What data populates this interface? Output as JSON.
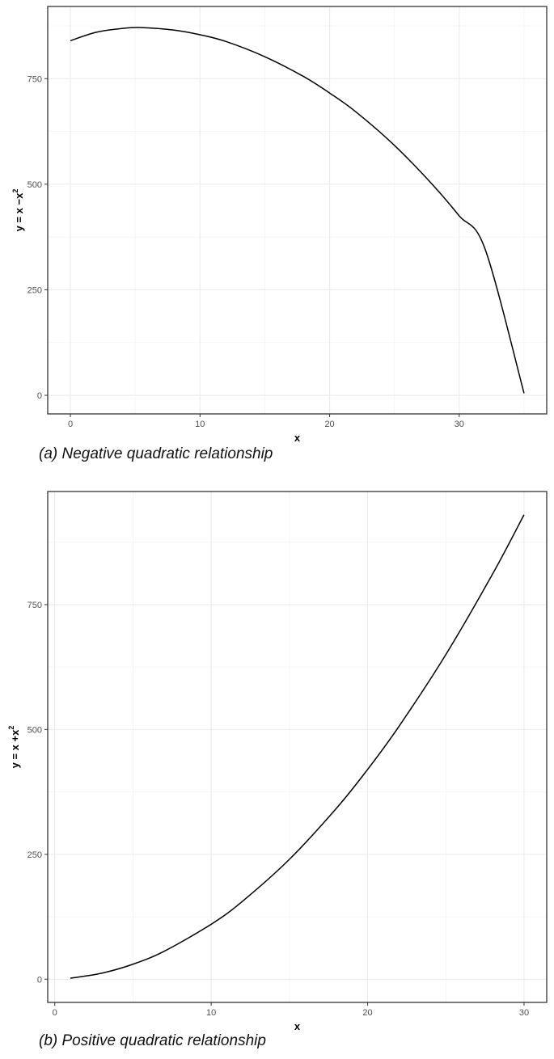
{
  "chart_data": [
    {
      "type": "line",
      "caption": "(a) Negative quadratic relationship",
      "xlabel": "x",
      "ylabel_base": "y = x −x",
      "ylabel_sup": "2",
      "xlim": [
        -1.75,
        36.75
      ],
      "ylim": [
        -44,
        921
      ],
      "xticks": [
        0,
        10,
        20,
        30
      ],
      "yticks": [
        0,
        250,
        500,
        750
      ],
      "xtick_labels": [
        "0",
        "10",
        "20",
        "30"
      ],
      "ytick_labels": [
        "0",
        "250",
        "500",
        "750"
      ],
      "series": [
        {
          "x": [
            0,
            2,
            4,
            5.5,
            8,
            10,
            12,
            15,
            18,
            20,
            22,
            25,
            28,
            30,
            32,
            35
          ],
          "y": [
            840,
            860,
            869,
            871,
            865,
            854,
            838,
            802,
            755,
            716,
            672,
            592,
            497,
            425,
            346,
            5
          ]
        }
      ]
    },
    {
      "type": "line",
      "caption": "(b) Positive quadratic relationship",
      "xlabel": "x",
      "ylabel_base": "y = x +x",
      "ylabel_sup": "2",
      "xlim": [
        -0.45,
        31.45
      ],
      "ylim": [
        -46.5,
        976.5
      ],
      "xticks": [
        0,
        10,
        20,
        30
      ],
      "yticks": [
        0,
        250,
        500,
        750
      ],
      "xtick_labels": [
        "0",
        "10",
        "20",
        "30"
      ],
      "ytick_labels": [
        "0",
        "250",
        "500",
        "750"
      ],
      "series": [
        {
          "x": [
            1,
            3,
            5,
            7,
            10,
            12,
            15,
            18,
            20,
            22,
            25,
            28,
            30
          ],
          "y": [
            2,
            12,
            30,
            56,
            110,
            156,
            240,
            342,
            420,
            506,
            650,
            812,
            930
          ]
        }
      ]
    }
  ]
}
